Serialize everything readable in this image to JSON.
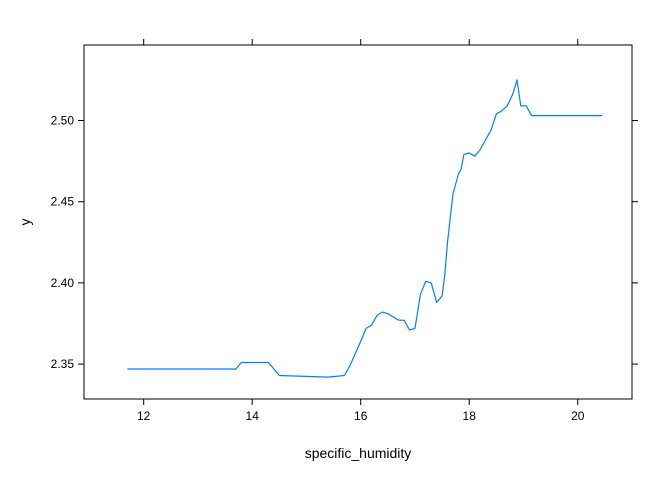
{
  "chart_data": {
    "type": "line",
    "xlabel": "specific_humidity",
    "ylabel": "y",
    "xlim": [
      10.9,
      21.0
    ],
    "ylim": [
      2.3285,
      2.5465
    ],
    "x_ticks": [
      12,
      14,
      16,
      18,
      20
    ],
    "y_ticks": [
      2.35,
      2.4,
      2.45,
      2.5
    ],
    "y_tick_labels": [
      "2.35",
      "2.40",
      "2.45",
      "2.50"
    ],
    "grid": false,
    "line_color": "#0080FF",
    "series": [
      {
        "x": [
          11.7,
          13.7,
          13.8,
          14.3,
          14.5,
          15.4,
          15.7,
          15.8,
          16.0,
          16.1,
          16.2,
          16.3,
          16.4,
          16.5,
          16.7,
          16.8,
          16.9,
          17.0,
          17.1,
          17.2,
          17.3,
          17.4,
          17.5,
          17.55,
          17.6,
          17.7,
          17.8,
          17.85,
          17.9,
          18.0,
          18.1,
          18.2,
          18.3,
          18.4,
          18.5,
          18.6,
          18.7,
          18.8,
          18.88,
          18.95,
          19.05,
          19.15,
          20.45
        ],
        "values": [
          2.347,
          2.347,
          2.351,
          2.351,
          2.343,
          2.342,
          2.343,
          2.349,
          2.364,
          2.372,
          2.374,
          2.38,
          2.382,
          2.381,
          2.377,
          2.377,
          2.371,
          2.372,
          2.393,
          2.401,
          2.4,
          2.388,
          2.392,
          2.405,
          2.425,
          2.455,
          2.467,
          2.47,
          2.479,
          2.48,
          2.478,
          2.482,
          2.488,
          2.494,
          2.504,
          2.506,
          2.509,
          2.516,
          2.525,
          2.509,
          2.509,
          2.503,
          2.503
        ]
      }
    ]
  }
}
